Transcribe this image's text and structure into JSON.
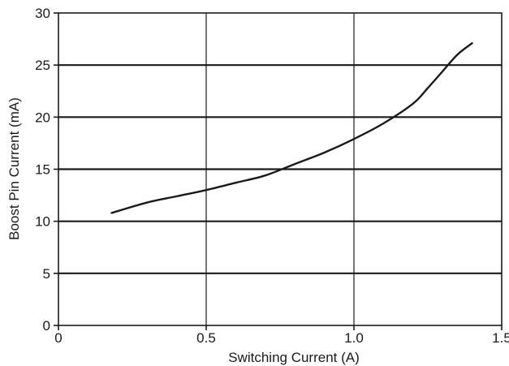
{
  "chart_data": {
    "type": "line",
    "title": "",
    "xlabel": "Switching Current (A)",
    "ylabel": "Boost Pin Current (mA)",
    "xlim": [
      0,
      1.5
    ],
    "ylim": [
      0,
      30
    ],
    "x_ticks": [
      0,
      0.5,
      1.0,
      1.5
    ],
    "x_tick_labels": [
      "0",
      "0.5",
      "1.0",
      "1.5"
    ],
    "y_ticks": [
      0,
      5,
      10,
      15,
      20,
      25,
      30
    ],
    "y_tick_labels": [
      "0",
      "5",
      "10",
      "15",
      "20",
      "25",
      "30"
    ],
    "grid": true,
    "legend": "none",
    "series": [
      {
        "color": "#1a1a1a",
        "x": [
          0.18,
          0.3,
          0.4,
          0.5,
          0.6,
          0.7,
          0.8,
          0.9,
          1.0,
          1.1,
          1.2,
          1.25,
          1.3,
          1.35,
          1.4
        ],
        "y": [
          10.8,
          11.8,
          12.4,
          13.0,
          13.7,
          14.4,
          15.5,
          16.6,
          17.9,
          19.4,
          21.3,
          22.8,
          24.4,
          26.0,
          27.1
        ]
      }
    ]
  }
}
